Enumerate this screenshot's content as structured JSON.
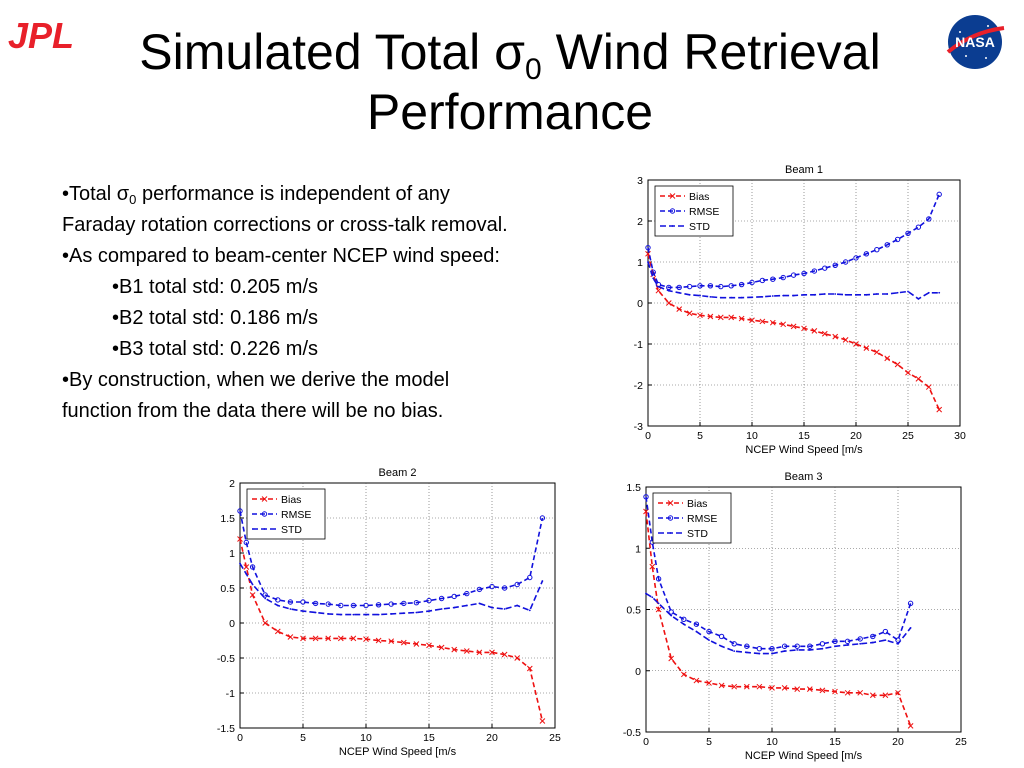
{
  "slide": {
    "title_pre": "Simulated Total σ",
    "title_sub": "0",
    "title_post": " Wind Retrieval",
    "title_line2": "Performance",
    "logos": {
      "left": "JPL",
      "right": "NASA"
    },
    "bullets": {
      "b1_pre": "•Total σ",
      "b1_sub": "0",
      "b1_post": " performance is independent of any",
      "b1_cont": "Faraday rotation corrections or cross-talk removal.",
      "b2": "•As compared to beam-center NCEP wind speed:",
      "b2a": "•B1 total std: 0.205 m/s",
      "b2b": "•B2 total std: 0.186 m/s",
      "b2c": "•B3 total std: 0.226 m/s",
      "b3": "•By construction, when we derive the model",
      "b3_cont": "function from the data there will be no bias."
    }
  },
  "colors": {
    "bias": "#ee1111",
    "rmse": "#1111dd",
    "std": "#1111dd",
    "logo_red": "#e8202a",
    "nasa_blue": "#0b3d91"
  },
  "chart_data": [
    {
      "type": "line",
      "title": "Beam 1",
      "xlabel": "NCEP Wind Speed [m/s",
      "xlim": [
        0,
        30
      ],
      "ylim": [
        -3,
        3
      ],
      "xticks": [
        0,
        5,
        10,
        15,
        20,
        25,
        30
      ],
      "yticks": [
        -3,
        -2,
        -1,
        0,
        1,
        2,
        3
      ],
      "grid": true,
      "legend_position": "top-left",
      "series": [
        {
          "name": "Bias",
          "style": "bias",
          "x": [
            0,
            0.5,
            1,
            2,
            3,
            4,
            5,
            6,
            7,
            8,
            9,
            10,
            11,
            12,
            13,
            14,
            15,
            16,
            17,
            18,
            19,
            20,
            21,
            22,
            23,
            24,
            25,
            26,
            27,
            28
          ],
          "y": [
            1.2,
            0.7,
            0.3,
            0.0,
            -0.15,
            -0.25,
            -0.3,
            -0.33,
            -0.35,
            -0.35,
            -0.38,
            -0.42,
            -0.45,
            -0.48,
            -0.52,
            -0.57,
            -0.62,
            -0.68,
            -0.75,
            -0.82,
            -0.9,
            -1.0,
            -1.1,
            -1.2,
            -1.35,
            -1.5,
            -1.7,
            -1.85,
            -2.05,
            -2.6
          ]
        },
        {
          "name": "RMSE",
          "style": "rmse",
          "x": [
            0,
            0.5,
            1,
            2,
            3,
            4,
            5,
            6,
            7,
            8,
            9,
            10,
            11,
            12,
            13,
            14,
            15,
            16,
            17,
            18,
            19,
            20,
            21,
            22,
            23,
            24,
            25,
            26,
            27,
            28
          ],
          "y": [
            1.35,
            0.75,
            0.45,
            0.38,
            0.38,
            0.4,
            0.42,
            0.42,
            0.4,
            0.42,
            0.45,
            0.5,
            0.55,
            0.58,
            0.62,
            0.68,
            0.72,
            0.78,
            0.85,
            0.92,
            1.0,
            1.1,
            1.2,
            1.3,
            1.42,
            1.55,
            1.7,
            1.85,
            2.05,
            2.65
          ]
        },
        {
          "name": "STD",
          "style": "std",
          "x": [
            0,
            0.5,
            1,
            2,
            3,
            4,
            5,
            6,
            7,
            8,
            9,
            10,
            11,
            12,
            13,
            14,
            15,
            16,
            17,
            18,
            19,
            20,
            21,
            22,
            23,
            24,
            25,
            26,
            27,
            28
          ],
          "y": [
            1.0,
            0.6,
            0.4,
            0.3,
            0.25,
            0.2,
            0.18,
            0.15,
            0.13,
            0.13,
            0.13,
            0.14,
            0.15,
            0.17,
            0.18,
            0.18,
            0.2,
            0.2,
            0.22,
            0.22,
            0.2,
            0.2,
            0.2,
            0.22,
            0.22,
            0.25,
            0.28,
            0.1,
            0.25,
            0.25
          ]
        }
      ]
    },
    {
      "type": "line",
      "title": "Beam 2",
      "xlabel": "NCEP Wind Speed [m/s",
      "xlim": [
        0,
        25
      ],
      "ylim": [
        -1.5,
        2
      ],
      "xticks": [
        0,
        5,
        10,
        15,
        20,
        25
      ],
      "yticks": [
        -1.5,
        -1,
        -0.5,
        0,
        0.5,
        1,
        1.5,
        2
      ],
      "grid": true,
      "legend_position": "top-left",
      "series": [
        {
          "name": "Bias",
          "style": "bias",
          "x": [
            0,
            0.5,
            1,
            2,
            3,
            4,
            5,
            6,
            7,
            8,
            9,
            10,
            11,
            12,
            13,
            14,
            15,
            16,
            17,
            18,
            19,
            20,
            21,
            22,
            23,
            24
          ],
          "y": [
            1.2,
            0.8,
            0.4,
            0.0,
            -0.12,
            -0.2,
            -0.22,
            -0.22,
            -0.22,
            -0.22,
            -0.22,
            -0.23,
            -0.25,
            -0.26,
            -0.28,
            -0.3,
            -0.32,
            -0.35,
            -0.38,
            -0.4,
            -0.42,
            -0.42,
            -0.45,
            -0.5,
            -0.65,
            -1.4
          ]
        },
        {
          "name": "RMSE",
          "style": "rmse",
          "x": [
            0,
            0.5,
            1,
            2,
            3,
            4,
            5,
            6,
            7,
            8,
            9,
            10,
            11,
            12,
            13,
            14,
            15,
            16,
            17,
            18,
            19,
            20,
            21,
            22,
            23,
            24
          ],
          "y": [
            1.6,
            1.15,
            0.8,
            0.4,
            0.33,
            0.3,
            0.3,
            0.28,
            0.27,
            0.25,
            0.25,
            0.25,
            0.26,
            0.27,
            0.28,
            0.29,
            0.32,
            0.35,
            0.38,
            0.42,
            0.48,
            0.52,
            0.5,
            0.55,
            0.65,
            1.5
          ]
        },
        {
          "name": "STD",
          "style": "std",
          "x": [
            0,
            0.5,
            1,
            2,
            3,
            4,
            5,
            6,
            7,
            8,
            9,
            10,
            11,
            12,
            13,
            14,
            15,
            16,
            17,
            18,
            19,
            20,
            21,
            22,
            23,
            24
          ],
          "y": [
            0.85,
            0.7,
            0.55,
            0.35,
            0.25,
            0.2,
            0.17,
            0.15,
            0.13,
            0.12,
            0.12,
            0.12,
            0.12,
            0.13,
            0.14,
            0.15,
            0.17,
            0.2,
            0.22,
            0.25,
            0.28,
            0.22,
            0.2,
            0.25,
            0.18,
            0.6
          ]
        }
      ]
    },
    {
      "type": "line",
      "title": "Beam 3",
      "xlabel": "NCEP Wind Speed [m/s",
      "xlim": [
        0,
        25
      ],
      "ylim": [
        -0.5,
        1.5
      ],
      "xticks": [
        0,
        5,
        10,
        15,
        20,
        25
      ],
      "yticks": [
        -0.5,
        0,
        0.5,
        1,
        1.5
      ],
      "grid": true,
      "legend_position": "top-left",
      "series": [
        {
          "name": "Bias",
          "style": "bias",
          "x": [
            0,
            0.5,
            1,
            2,
            3,
            4,
            5,
            6,
            7,
            8,
            9,
            10,
            11,
            12,
            13,
            14,
            15,
            16,
            17,
            18,
            19,
            20,
            21
          ],
          "y": [
            1.3,
            0.85,
            0.5,
            0.1,
            -0.03,
            -0.08,
            -0.1,
            -0.12,
            -0.13,
            -0.13,
            -0.13,
            -0.14,
            -0.14,
            -0.15,
            -0.15,
            -0.16,
            -0.17,
            -0.18,
            -0.18,
            -0.2,
            -0.2,
            -0.18,
            -0.45
          ]
        },
        {
          "name": "RMSE",
          "style": "rmse",
          "x": [
            0,
            0.5,
            1,
            2,
            3,
            4,
            5,
            6,
            7,
            8,
            9,
            10,
            11,
            12,
            13,
            14,
            15,
            16,
            17,
            18,
            19,
            20,
            21
          ],
          "y": [
            1.42,
            1.05,
            0.75,
            0.48,
            0.42,
            0.38,
            0.32,
            0.28,
            0.22,
            0.2,
            0.18,
            0.18,
            0.2,
            0.2,
            0.2,
            0.22,
            0.24,
            0.24,
            0.26,
            0.28,
            0.32,
            0.25,
            0.55
          ]
        },
        {
          "name": "STD",
          "style": "std",
          "x": [
            0,
            0.5,
            1,
            2,
            3,
            4,
            5,
            6,
            7,
            8,
            9,
            10,
            11,
            12,
            13,
            14,
            15,
            16,
            17,
            18,
            19,
            20,
            21
          ],
          "y": [
            0.63,
            0.6,
            0.55,
            0.45,
            0.38,
            0.32,
            0.25,
            0.2,
            0.16,
            0.15,
            0.14,
            0.14,
            0.16,
            0.17,
            0.17,
            0.18,
            0.2,
            0.21,
            0.22,
            0.23,
            0.25,
            0.22,
            0.35
          ]
        }
      ]
    }
  ]
}
